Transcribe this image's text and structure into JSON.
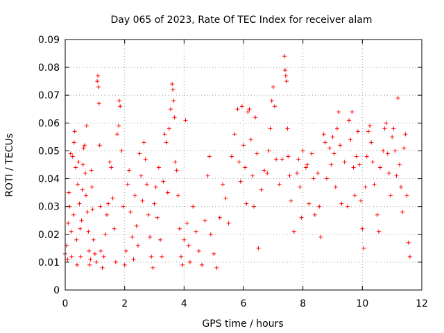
{
  "chart_data": {
    "type": "scatter",
    "title": "Day 065 of 2023, Rate Of TEC Index for receiver alam",
    "xlabel": "GPS time / hours",
    "ylabel": "ROTI / TECUs",
    "xlim": [
      0,
      12
    ],
    "ylim": [
      0,
      0.09
    ],
    "x_ticks": [
      "0",
      "2",
      "4",
      "6",
      "8",
      "10",
      "12"
    ],
    "y_ticks": [
      "0",
      "0.01",
      "0.02",
      "0.03",
      "0.04",
      "0.05",
      "0.06",
      "0.07",
      "0.08",
      "0.09"
    ],
    "grid": true,
    "marker": "+",
    "color": "#ff0000",
    "series": [
      {
        "points": [
          [
            0.0,
            0.013
          ],
          [
            0.05,
            0.016
          ],
          [
            0.08,
            0.011
          ],
          [
            0.1,
            0.024
          ],
          [
            0.12,
            0.035
          ],
          [
            0.15,
            0.03
          ],
          [
            0.18,
            0.049
          ],
          [
            0.2,
            0.021
          ],
          [
            0.22,
            0.012
          ],
          [
            0.25,
            0.048
          ],
          [
            0.28,
            0.027
          ],
          [
            0.3,
            0.053
          ],
          [
            0.32,
            0.057
          ],
          [
            0.35,
            0.044
          ],
          [
            0.38,
            0.018
          ],
          [
            0.4,
            0.009
          ],
          [
            0.42,
            0.038
          ],
          [
            0.45,
            0.046
          ],
          [
            0.48,
            0.031
          ],
          [
            0.5,
            0.022
          ],
          [
            0.52,
            0.012
          ],
          [
            0.55,
            0.025
          ],
          [
            0.58,
            0.036
          ],
          [
            0.6,
            0.045
          ],
          [
            0.62,
            0.051
          ],
          [
            0.65,
            0.052
          ],
          [
            0.68,
            0.042
          ],
          [
            0.7,
            0.034
          ],
          [
            0.72,
            0.059
          ],
          [
            0.75,
            0.028
          ],
          [
            0.78,
            0.021
          ],
          [
            0.8,
            0.014
          ],
          [
            0.82,
            0.009
          ],
          [
            0.85,
            0.011
          ],
          [
            0.88,
            0.043
          ],
          [
            0.9,
            0.037
          ],
          [
            0.92,
            0.029
          ],
          [
            0.95,
            0.018
          ],
          [
            1.0,
            0.013
          ],
          [
            1.05,
            0.01
          ],
          [
            1.08,
            0.075
          ],
          [
            1.1,
            0.077
          ],
          [
            1.12,
            0.073
          ],
          [
            1.14,
            0.067
          ],
          [
            1.16,
            0.052
          ],
          [
            1.18,
            0.03
          ],
          [
            1.2,
            0.014
          ],
          [
            1.25,
            0.008
          ],
          [
            1.3,
            0.012
          ],
          [
            1.35,
            0.02
          ],
          [
            1.4,
            0.027
          ],
          [
            1.45,
            0.031
          ],
          [
            1.5,
            0.046
          ],
          [
            1.55,
            0.044
          ],
          [
            1.6,
            0.033
          ],
          [
            1.65,
            0.022
          ],
          [
            1.7,
            0.01
          ],
          [
            1.75,
            0.056
          ],
          [
            1.8,
            0.059
          ],
          [
            1.82,
            0.068
          ],
          [
            1.85,
            0.066
          ],
          [
            1.9,
            0.05
          ],
          [
            1.95,
            0.03
          ],
          [
            2.0,
            0.009
          ],
          [
            2.05,
            0.014
          ],
          [
            2.1,
            0.038
          ],
          [
            2.15,
            0.043
          ],
          [
            2.2,
            0.028
          ],
          [
            2.25,
            0.019
          ],
          [
            2.3,
            0.011
          ],
          [
            2.35,
            0.034
          ],
          [
            2.4,
            0.023
          ],
          [
            2.45,
            0.016
          ],
          [
            2.5,
            0.049
          ],
          [
            2.55,
            0.041
          ],
          [
            2.6,
            0.032
          ],
          [
            2.65,
            0.053
          ],
          [
            2.7,
            0.047
          ],
          [
            2.75,
            0.038
          ],
          [
            2.8,
            0.027
          ],
          [
            2.85,
            0.019
          ],
          [
            2.9,
            0.012
          ],
          [
            2.95,
            0.008
          ],
          [
            3.0,
            0.031
          ],
          [
            3.05,
            0.037
          ],
          [
            3.1,
            0.026
          ],
          [
            3.15,
            0.044
          ],
          [
            3.2,
            0.018
          ],
          [
            3.25,
            0.012
          ],
          [
            3.3,
            0.039
          ],
          [
            3.35,
            0.056
          ],
          [
            3.4,
            0.053
          ],
          [
            3.45,
            0.035
          ],
          [
            3.5,
            0.058
          ],
          [
            3.55,
            0.065
          ],
          [
            3.6,
            0.074
          ],
          [
            3.62,
            0.072
          ],
          [
            3.65,
            0.068
          ],
          [
            3.68,
            0.062
          ],
          [
            3.7,
            0.046
          ],
          [
            3.75,
            0.043
          ],
          [
            3.8,
            0.034
          ],
          [
            3.85,
            0.022
          ],
          [
            3.9,
            0.012
          ],
          [
            3.95,
            0.009
          ],
          [
            4.0,
            0.018
          ],
          [
            4.05,
            0.061
          ],
          [
            4.1,
            0.024
          ],
          [
            4.15,
            0.016
          ],
          [
            4.2,
            0.01
          ],
          [
            4.3,
            0.03
          ],
          [
            4.4,
            0.021
          ],
          [
            4.5,
            0.014
          ],
          [
            4.6,
            0.009
          ],
          [
            4.7,
            0.025
          ],
          [
            4.8,
            0.041
          ],
          [
            4.85,
            0.048
          ],
          [
            4.9,
            0.02
          ],
          [
            5.0,
            0.013
          ],
          [
            5.1,
            0.008
          ],
          [
            5.2,
            0.026
          ],
          [
            5.3,
            0.038
          ],
          [
            5.4,
            0.033
          ],
          [
            5.5,
            0.024
          ],
          [
            5.6,
            0.048
          ],
          [
            5.7,
            0.056
          ],
          [
            5.8,
            0.065
          ],
          [
            5.85,
            0.046
          ],
          [
            5.9,
            0.039
          ],
          [
            5.95,
            0.066
          ],
          [
            6.0,
            0.052
          ],
          [
            6.05,
            0.044
          ],
          [
            6.1,
            0.031
          ],
          [
            6.15,
            0.064
          ],
          [
            6.2,
            0.065
          ],
          [
            6.25,
            0.054
          ],
          [
            6.3,
            0.041
          ],
          [
            6.35,
            0.03
          ],
          [
            6.4,
            0.062
          ],
          [
            6.45,
            0.049
          ],
          [
            6.5,
            0.015
          ],
          [
            6.6,
            0.036
          ],
          [
            6.7,
            0.043
          ],
          [
            6.8,
            0.042
          ],
          [
            6.85,
            0.05
          ],
          [
            6.9,
            0.058
          ],
          [
            6.95,
            0.068
          ],
          [
            7.0,
            0.073
          ],
          [
            7.05,
            0.066
          ],
          [
            7.1,
            0.047
          ],
          [
            7.2,
            0.038
          ],
          [
            7.3,
            0.047
          ],
          [
            7.38,
            0.084
          ],
          [
            7.4,
            0.079
          ],
          [
            7.42,
            0.077
          ],
          [
            7.45,
            0.075
          ],
          [
            7.48,
            0.058
          ],
          [
            7.5,
            0.048
          ],
          [
            7.55,
            0.041
          ],
          [
            7.6,
            0.032
          ],
          [
            7.7,
            0.021
          ],
          [
            7.8,
            0.042
          ],
          [
            7.85,
            0.047
          ],
          [
            7.9,
            0.037
          ],
          [
            7.95,
            0.026
          ],
          [
            8.0,
            0.05
          ],
          [
            8.1,
            0.044
          ],
          [
            8.15,
            0.045
          ],
          [
            8.2,
            0.031
          ],
          [
            8.3,
            0.049
          ],
          [
            8.35,
            0.04
          ],
          [
            8.4,
            0.027
          ],
          [
            8.5,
            0.042
          ],
          [
            8.55,
            0.03
          ],
          [
            8.6,
            0.019
          ],
          [
            8.7,
            0.056
          ],
          [
            8.75,
            0.053
          ],
          [
            8.8,
            0.04
          ],
          [
            8.9,
            0.051
          ],
          [
            8.95,
            0.045
          ],
          [
            9.0,
            0.055
          ],
          [
            9.05,
            0.049
          ],
          [
            9.1,
            0.037
          ],
          [
            9.15,
            0.058
          ],
          [
            9.2,
            0.064
          ],
          [
            9.25,
            0.052
          ],
          [
            9.3,
            0.031
          ],
          [
            9.4,
            0.046
          ],
          [
            9.5,
            0.03
          ],
          [
            9.55,
            0.061
          ],
          [
            9.6,
            0.054
          ],
          [
            9.65,
            0.064
          ],
          [
            9.7,
            0.044
          ],
          [
            9.75,
            0.034
          ],
          [
            9.8,
            0.048
          ],
          [
            9.85,
            0.057
          ],
          [
            9.9,
            0.045
          ],
          [
            9.95,
            0.032
          ],
          [
            10.0,
            0.022
          ],
          [
            10.05,
            0.015
          ],
          [
            10.1,
            0.037
          ],
          [
            10.15,
            0.048
          ],
          [
            10.2,
            0.057
          ],
          [
            10.25,
            0.059
          ],
          [
            10.3,
            0.053
          ],
          [
            10.35,
            0.046
          ],
          [
            10.4,
            0.038
          ],
          [
            10.5,
            0.027
          ],
          [
            10.55,
            0.021
          ],
          [
            10.6,
            0.044
          ],
          [
            10.7,
            0.05
          ],
          [
            10.75,
            0.058
          ],
          [
            10.8,
            0.06
          ],
          [
            10.85,
            0.049
          ],
          [
            10.9,
            0.042
          ],
          [
            10.95,
            0.034
          ],
          [
            11.0,
            0.055
          ],
          [
            11.05,
            0.058
          ],
          [
            11.1,
            0.05
          ],
          [
            11.15,
            0.041
          ],
          [
            11.2,
            0.069
          ],
          [
            11.25,
            0.045
          ],
          [
            11.3,
            0.037
          ],
          [
            11.35,
            0.028
          ],
          [
            11.4,
            0.051
          ],
          [
            11.45,
            0.056
          ],
          [
            11.5,
            0.034
          ],
          [
            11.55,
            0.017
          ],
          [
            11.6,
            0.012
          ]
        ]
      }
    ]
  }
}
